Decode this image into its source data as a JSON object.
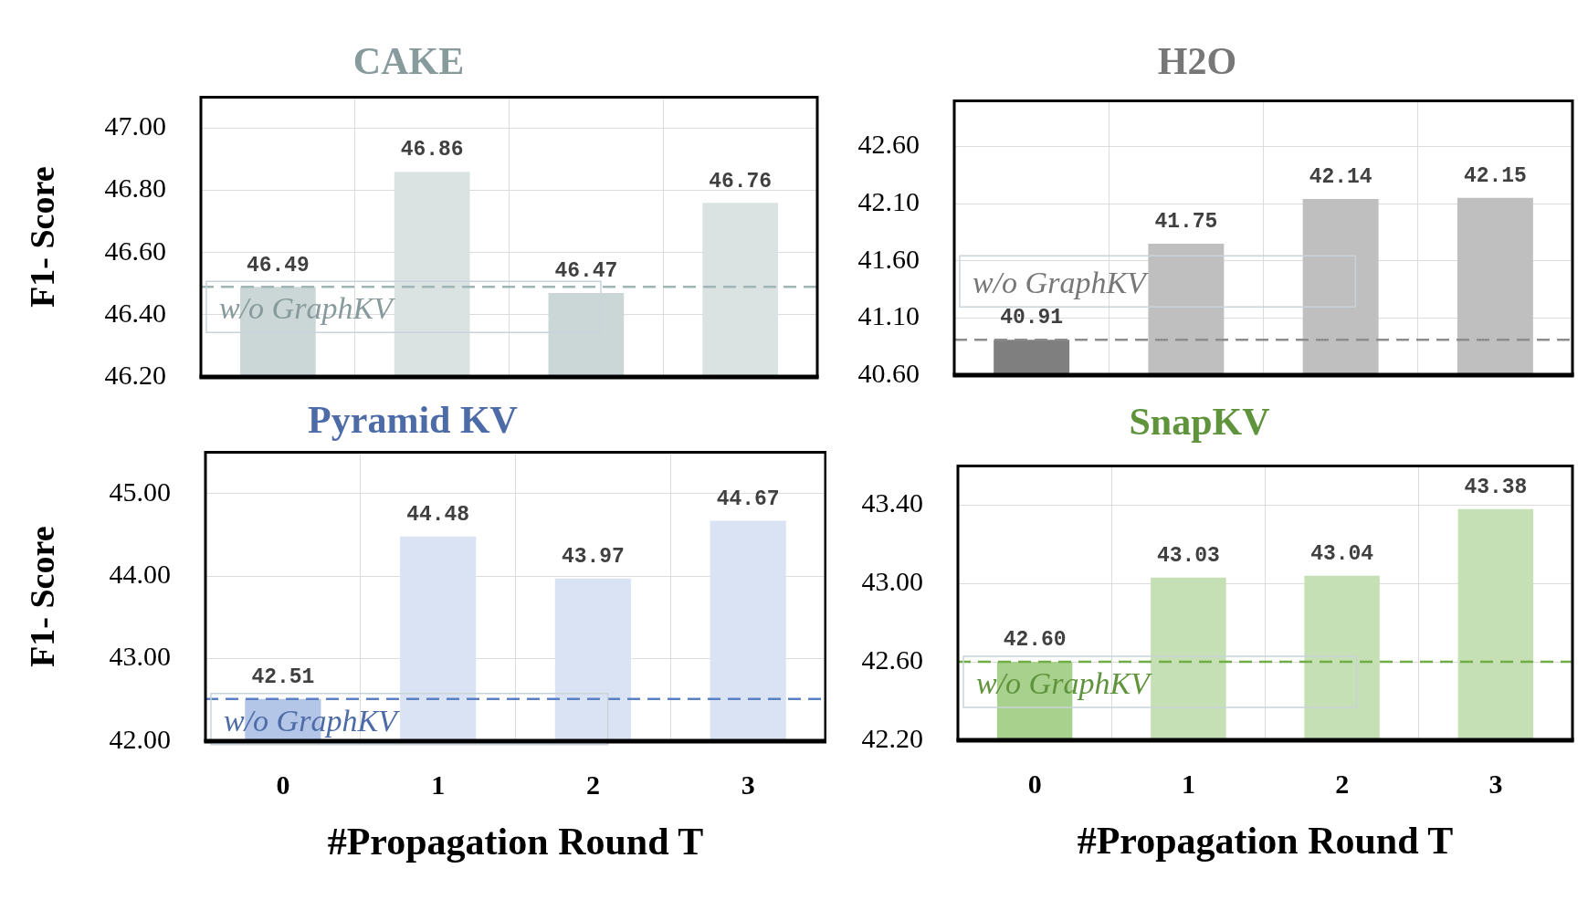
{
  "chart_data": [
    {
      "type": "bar",
      "title": "CAKE",
      "ylabel": "F1- Score",
      "categories": [
        "0",
        "1",
        "2",
        "3"
      ],
      "values": [
        46.49,
        46.86,
        46.47,
        46.76
      ],
      "colors": [
        "#cbd6d6",
        "#dbe2e2",
        "#cbd6d6",
        "#dbe2e2"
      ],
      "value_labels": [
        "46.49",
        "46.86",
        "46.47",
        "46.76"
      ],
      "ylim": [
        46.2,
        47.1
      ],
      "yticks": [
        {
          "value": 46.2,
          "label": "46.20"
        },
        {
          "value": 46.4,
          "label": "46.40"
        },
        {
          "value": 46.6,
          "label": "46.60"
        },
        {
          "value": 46.8,
          "label": "46.80"
        },
        {
          "value": 47,
          "label": "47.00"
        }
      ],
      "grid": true,
      "tick_labels": "y",
      "ref_lines": [
        {
          "axis": "y",
          "value": 46.49,
          "label": "w/o GraphKV",
          "color": "#9fb5b8",
          "line_style": "dashed"
        }
      ]
    },
    {
      "type": "bar",
      "title": "H2O",
      "categories": [
        "0",
        "1",
        "2",
        "3"
      ],
      "values": [
        40.91,
        41.75,
        42.14,
        42.15
      ],
      "colors": [
        "#7f7f7f",
        "#bfbfbf",
        "#bfbfbf",
        "#bfbfbf"
      ],
      "value_labels": [
        "40.91",
        "41.75",
        "42.14",
        "42.15"
      ],
      "ylim": [
        40.6,
        43.0
      ],
      "yticks": [
        {
          "value": 40.6,
          "label": "40.60"
        },
        {
          "value": 41.1,
          "label": "41.10"
        },
        {
          "value": 41.6,
          "label": "41.60"
        },
        {
          "value": 42.1,
          "label": "42.10"
        },
        {
          "value": 42.6,
          "label": "42.60"
        }
      ],
      "grid": true,
      "tick_labels": "y",
      "ref_lines": [
        {
          "axis": "y",
          "value": 40.91,
          "label": "w/o GraphKV",
          "color": "#8c8c8c",
          "line_style": "dashed"
        }
      ]
    },
    {
      "type": "bar",
      "title": "Pyramid KV",
      "ylabel": "F1- Score",
      "xlabel": "#Propagation Round T",
      "categories": [
        "0",
        "1",
        "2",
        "3"
      ],
      "values": [
        42.51,
        44.48,
        43.97,
        44.67
      ],
      "colors": [
        "#b4c6e7",
        "#dae3f3",
        "#dae3f3",
        "#dae3f3"
      ],
      "value_labels": [
        "42.51",
        "44.48",
        "43.97",
        "44.67"
      ],
      "ylim": [
        42,
        45.5
      ],
      "yticks": [
        {
          "value": 42,
          "label": "42.00"
        },
        {
          "value": 43,
          "label": "43.00"
        },
        {
          "value": 44,
          "label": "44.00"
        },
        {
          "value": 45,
          "label": "45.00"
        }
      ],
      "grid": true,
      "ref_lines": [
        {
          "axis": "y",
          "value": 42.51,
          "label": "w/o GraphKV",
          "color": "#5b7fc4",
          "line_style": "dashed"
        }
      ]
    },
    {
      "type": "bar",
      "title": "SnapKV",
      "xlabel": "#Propagation Round T",
      "categories": [
        "0",
        "1",
        "2",
        "3"
      ],
      "values": [
        42.6,
        43.03,
        43.04,
        43.38
      ],
      "colors": [
        "#a9d18e",
        "#c5e0b4",
        "#c5e0b4",
        "#c5e0b4"
      ],
      "value_labels": [
        "42.60",
        "43.03",
        "43.04",
        "43.38"
      ],
      "ylim": [
        42.2,
        43.6
      ],
      "yticks": [
        {
          "value": 42.2,
          "label": "42.20"
        },
        {
          "value": 42.6,
          "label": "42.60"
        },
        {
          "value": 43,
          "label": "43.00"
        },
        {
          "value": 43.4,
          "label": "43.40"
        }
      ],
      "grid": true,
      "ref_lines": [
        {
          "axis": "y",
          "value": 42.6,
          "label": "w/o GraphKV",
          "color": "#70ad47",
          "line_style": "dashed"
        }
      ]
    }
  ]
}
